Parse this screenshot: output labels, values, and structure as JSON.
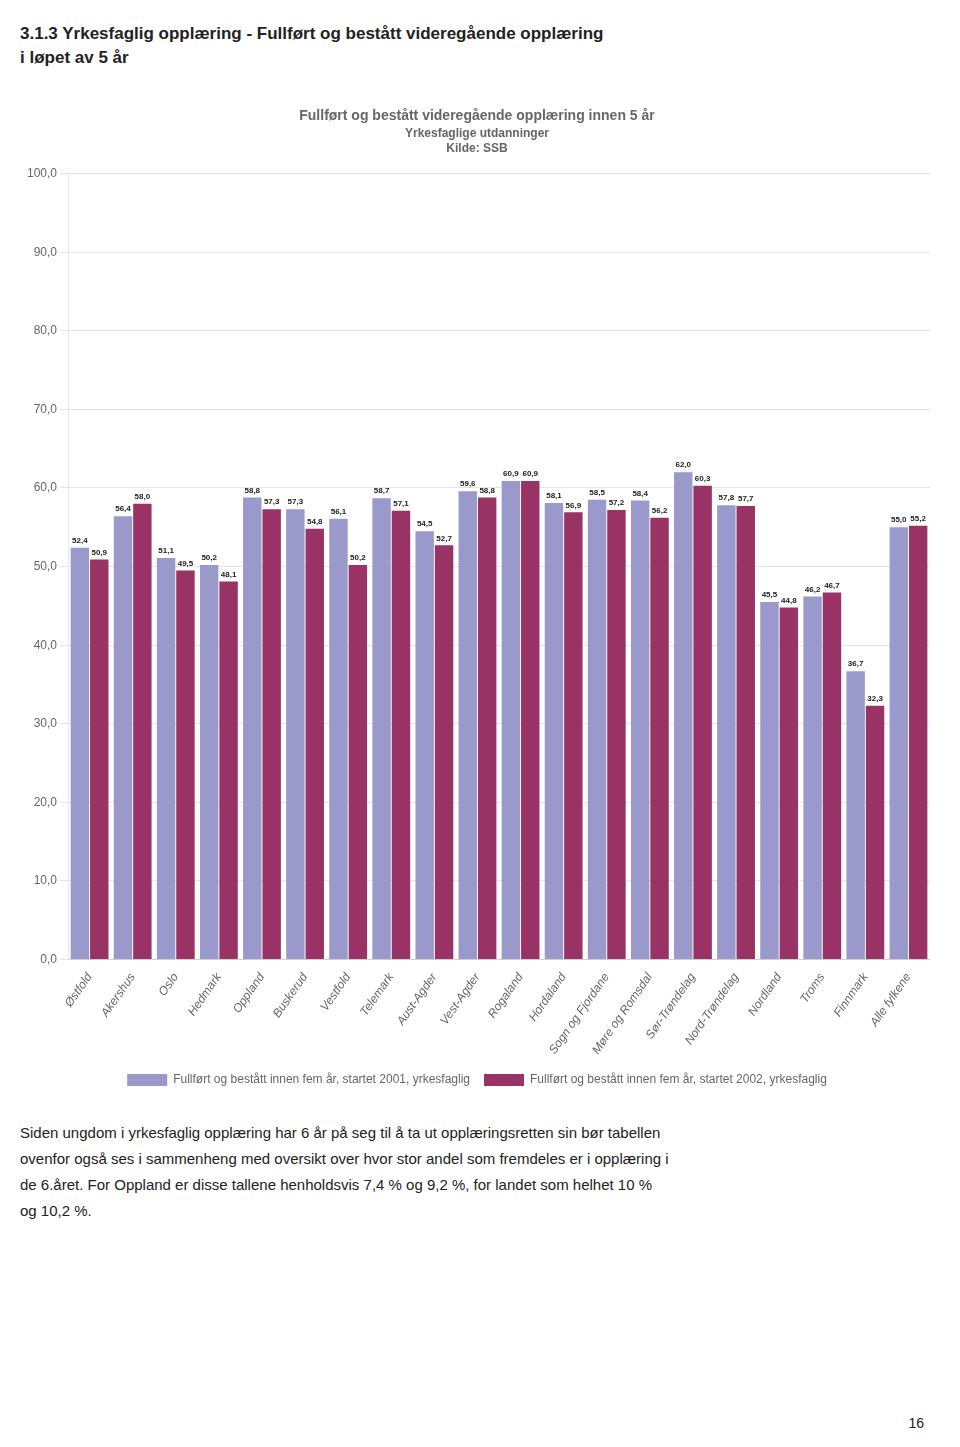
{
  "chart_data": {
    "type": "bar",
    "title": "Fullført og bestått videregående opplæring innen 5 år",
    "subtitle": [
      "Yrkesfaglige utdanninger",
      "Kilde: SSB"
    ],
    "annotations": [
      "3.1.3 Yrkesfaglig opplæring - Fullført og bestått videregående opplæring",
      "i løpet av 5 år",
      "Siden ungdom i yrkesfaglig opplæring har 6 år på seg til å ta ut opplæringsretten sin bør tabellen",
      "ovenfor også ses i sammenheng med oversikt over hvor stor andel som fremdeles er i opplæring i",
      "de 6.året.  For Oppland er disse tallene henholdsvis 7,4 % og 9,2 %, for landet som helhet 10 %",
      "og 10,2 %.",
      "16"
    ],
    "categories": [
      "Østfold",
      "Akershus",
      "Oslo",
      "Hedmark",
      "Oppland",
      "Buskerud",
      "Vestfold",
      "Telemark",
      "Aust-Agder",
      "Vest-Agder",
      "Rogaland",
      "Hordaland",
      "Sogn og Fjordane",
      "Møre og Romsdal",
      "Sør-Trøndelag",
      "Nord-Trøndelag",
      "Nordland",
      "Troms",
      "Finnmark",
      "Alle fylkene"
    ],
    "series": [
      {
        "name": "Fullført og bestått innen fem år, startet 2001, yrkesfaglig",
        "color": "#9999cc",
        "values": [
          52.4,
          56.4,
          51.1,
          50.2,
          58.8,
          57.3,
          56.1,
          58.7,
          54.5,
          59.6,
          60.9,
          58.1,
          58.5,
          58.4,
          62.0,
          57.8,
          45.5,
          46.2,
          36.7,
          55.0
        ],
        "value_labels": [
          "52,4",
          "56,4",
          "51,1",
          "50,2",
          "58,8",
          "57,3",
          "56,1",
          "58,7",
          "54,5",
          "59,6",
          "60,9",
          "58,1",
          "58,5",
          "58,4",
          "62,0",
          "57,8",
          "45,5",
          "46,2",
          "36,7",
          "55,0"
        ]
      },
      {
        "name": "Fullført og bestått innen fem år, startet 2002, yrkesfaglig",
        "color": "#993366",
        "values": [
          50.9,
          58.0,
          49.5,
          48.1,
          57.3,
          54.8,
          50.2,
          57.1,
          52.7,
          58.8,
          60.9,
          56.9,
          57.2,
          56.2,
          60.3,
          57.7,
          44.8,
          46.7,
          32.3,
          55.2
        ],
        "value_labels": [
          "50,9",
          "58,0",
          "49,5",
          "48,1",
          "57,3",
          "54,8",
          "50,2",
          "57,1",
          "52,7",
          "58,8",
          "60,9",
          "56,9",
          "57,2",
          "56,2",
          "60,3",
          "57,7",
          "44,8",
          "46,7",
          "32,3",
          "55,2"
        ]
      }
    ],
    "ylim": [
      0,
      100
    ],
    "yticks": [
      {
        "value": 0,
        "label": "0,0"
      },
      {
        "value": 10,
        "label": "10,0"
      },
      {
        "value": 20,
        "label": "20,0"
      },
      {
        "value": 30,
        "label": "30,0"
      },
      {
        "value": 40,
        "label": "40,0"
      },
      {
        "value": 50,
        "label": "50,0"
      },
      {
        "value": 60,
        "label": "60,0"
      },
      {
        "value": 70,
        "label": "70,0"
      },
      {
        "value": 80,
        "label": "80,0"
      },
      {
        "value": 90,
        "label": "90,0"
      },
      {
        "value": 100,
        "label": "100,0"
      }
    ],
    "grid": "y",
    "legend": "bottom",
    "data_labels": true
  }
}
